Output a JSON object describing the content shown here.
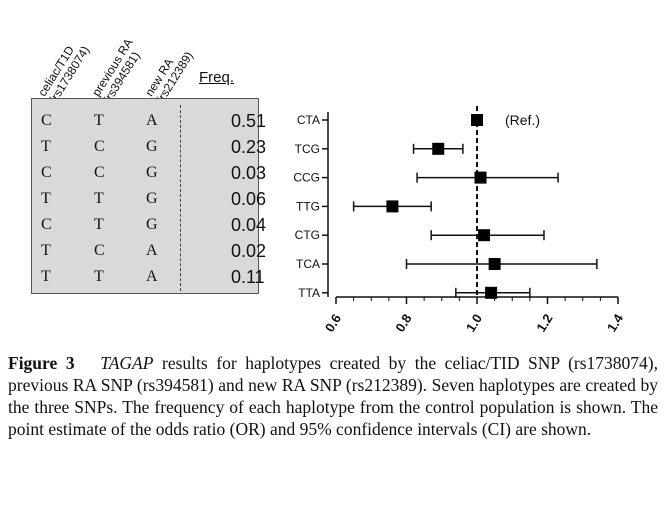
{
  "table": {
    "headers": [
      {
        "name": "celiac/T1D",
        "id": "(rs1738074)"
      },
      {
        "name": "previous RA",
        "id": "(rs394581)"
      },
      {
        "name": "new RA",
        "id": "(rs212389)"
      }
    ],
    "freq_header": "Freq.",
    "rows": [
      {
        "a": "C",
        "b": "T",
        "c": "A",
        "freq": "0.51"
      },
      {
        "a": "T",
        "b": "C",
        "c": "G",
        "freq": "0.23"
      },
      {
        "a": "C",
        "b": "C",
        "c": "G",
        "freq": "0.03"
      },
      {
        "a": "T",
        "b": "T",
        "c": "G",
        "freq": "0.06"
      },
      {
        "a": "C",
        "b": "T",
        "c": "G",
        "freq": "0.04"
      },
      {
        "a": "T",
        "b": "C",
        "c": "A",
        "freq": "0.02"
      },
      {
        "a": "T",
        "b": "T",
        "c": "A",
        "freq": "0.11"
      }
    ]
  },
  "chart_data": {
    "type": "scatter",
    "subtype": "forest-plot",
    "title": "",
    "xlabel": "",
    "ylabel": "",
    "xlim": [
      0.6,
      1.4
    ],
    "xticks": [
      "0.6",
      "0.8",
      "1.0",
      "1.2",
      "1.4"
    ],
    "reference_line": 1.0,
    "categories": [
      "CTA",
      "TCG",
      "CCG",
      "TTG",
      "CTG",
      "TCA",
      "TTA"
    ],
    "or": [
      1.0,
      0.89,
      1.01,
      0.76,
      1.02,
      1.05,
      1.04
    ],
    "ci_low": [
      null,
      0.82,
      0.83,
      0.65,
      0.87,
      0.8,
      0.94
    ],
    "ci_high": [
      null,
      0.96,
      1.23,
      0.87,
      1.19,
      1.34,
      1.15
    ],
    "annotation": "(Ref.)"
  },
  "caption": {
    "label": "Figure 3",
    "gene": "TAGAP",
    "text": " results for haplotypes created by the celiac/TID SNP (rs1738074), previous RA SNP (rs394581) and new RA SNP (rs212389). Seven haplotypes are created by the three SNPs. The frequency of each haplotype from the control population is shown. The point estimate of the odds ratio (OR) and 95% confidence intervals (CI) are shown."
  }
}
